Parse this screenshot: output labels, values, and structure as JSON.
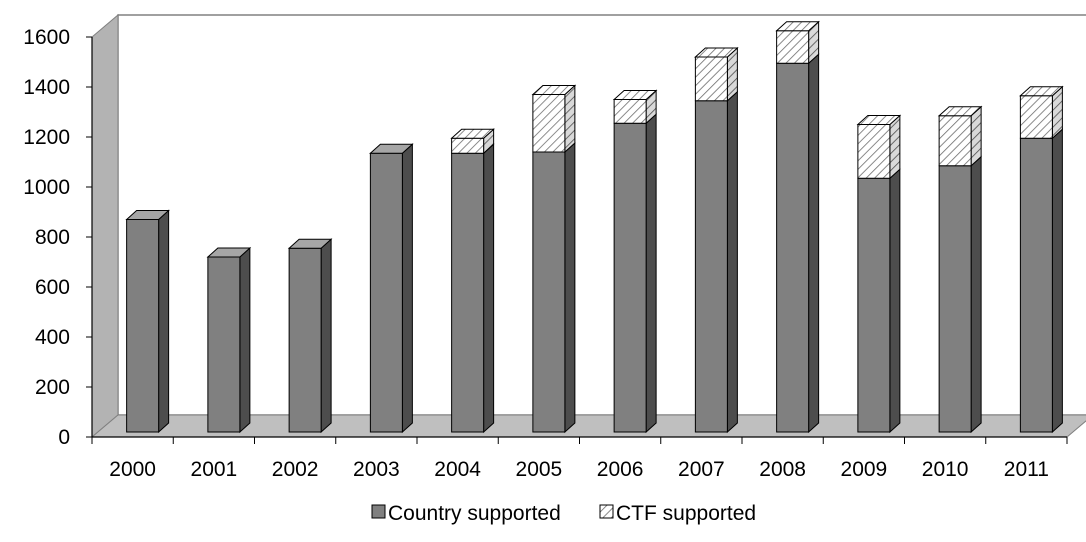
{
  "chart_data": {
    "type": "bar",
    "stacked": true,
    "style": "3d",
    "categories": [
      "2000",
      "2001",
      "2002",
      "2003",
      "2004",
      "2005",
      "2006",
      "2007",
      "2008",
      "2009",
      "2010",
      "2011"
    ],
    "series": [
      {
        "name": "Country supported",
        "values": [
          850,
          700,
          735,
          1115,
          1115,
          1120,
          1235,
          1325,
          1475,
          1015,
          1065,
          1175
        ],
        "color": "#808080",
        "pattern": "solid"
      },
      {
        "name": "CTF supported",
        "values": [
          0,
          0,
          0,
          0,
          60,
          230,
          95,
          175,
          130,
          215,
          200,
          170
        ],
        "color": "#ffffff",
        "pattern": "diagonal-hatch"
      }
    ],
    "title": "",
    "xlabel": "",
    "ylabel": "",
    "ylim": [
      0,
      1600
    ],
    "yticks": [
      "0",
      "200",
      "400",
      "600",
      "800",
      "1000",
      "1200",
      "1400",
      "1600"
    ],
    "grid": false,
    "legend": "bottom"
  },
  "colors": {
    "bar_front": "#808080",
    "bar_top": "#a6a6a6",
    "bar_side": "#4d4d4d",
    "back_wall": "#ffffff",
    "side_wall": "#b3b3b3",
    "floor": "#bfbfbf"
  }
}
